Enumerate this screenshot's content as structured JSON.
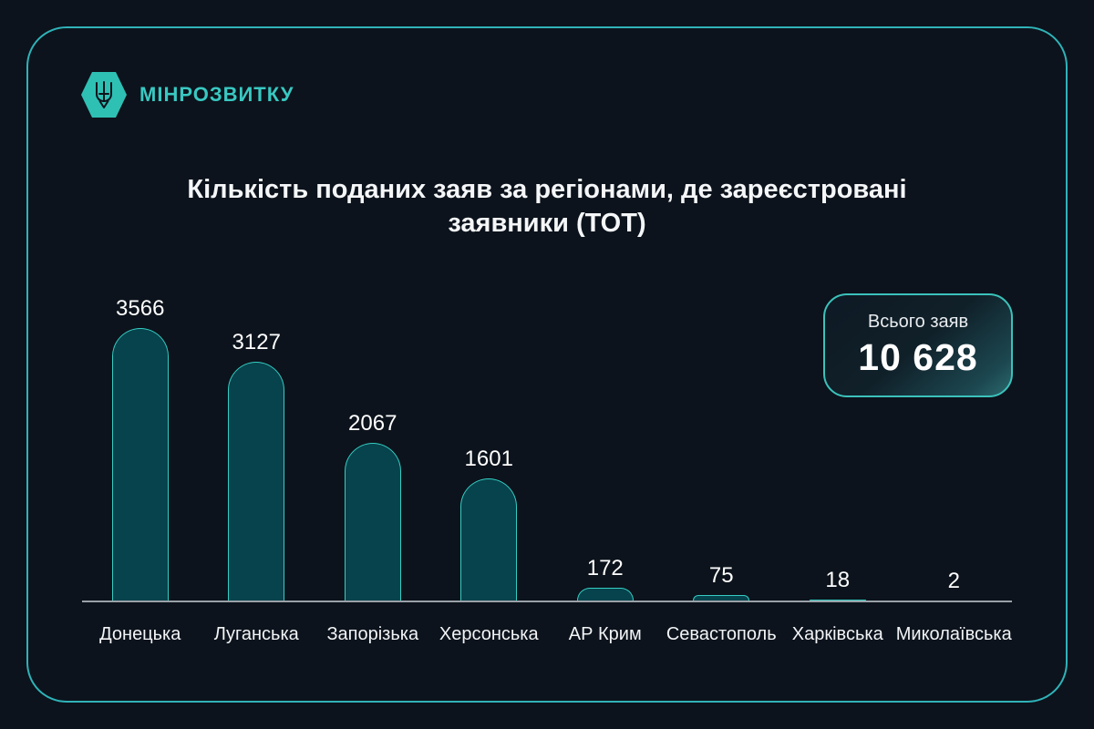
{
  "logo": {
    "text": "МІНРОЗВИТКУ"
  },
  "title": {
    "line1": "Кількість поданих заяв за регіонами, де зареєстровані",
    "line2": "заявники (ТОТ)"
  },
  "total_badge": {
    "label": "Всього заяв",
    "value": "10 628"
  },
  "chart_data": {
    "type": "bar",
    "title": "Кількість поданих заяв за регіонами, де зареєстровані заявники (ТОТ)",
    "categories": [
      "Донецька",
      "Луганська",
      "Запорізька",
      "Херсонська",
      "АР Крим",
      "Севастополь",
      "Харківська",
      "Миколаївська"
    ],
    "values": [
      3566,
      3127,
      2067,
      1601,
      172,
      75,
      18,
      2
    ],
    "total": 10628,
    "xlabel": "",
    "ylabel": "",
    "ylim": [
      0,
      3700
    ],
    "grid": false,
    "legend": "none",
    "value_labels": true
  },
  "colors": {
    "background": "#0c131c",
    "card_border": "#2fb3b8",
    "accent_teal": "#39c8c2",
    "bar_fill": "#07434c",
    "bar_stroke": "#35cdc4",
    "axis_line": "#9aa1a8",
    "text": "#f2f4f6"
  }
}
